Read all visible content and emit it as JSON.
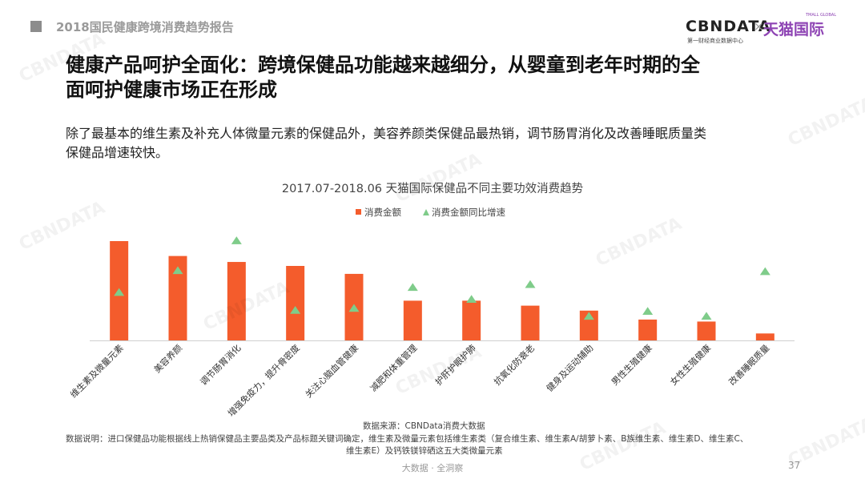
{
  "header": {
    "report_title": "2018国民健康跨境消费趋势报告",
    "logo_cbn": "CBNDATA",
    "logo_cbn_sub": "第一财经商业数据中心",
    "logo_times": "×",
    "logo_tmall": "天猫国际",
    "logo_tmall_en": "TMALL GLOBAL"
  },
  "headline_line1": "健康产品呵护全面化：跨境保健品功能越来越细分，从婴童到老年时期的全",
  "headline_line2": "面呵护健康市场正在形成",
  "subtext_line1": "除了最基本的维生素及补充人体微量元素的保健品外，美容养颜类保健品最热销，调节肠胃消化及改善睡眠质量类",
  "subtext_line2": "保健品增速较快。",
  "chart_data": {
    "type": "bar",
    "title": "2017.07-2018.06 天猫国际保健品不同主要功效消费趋势",
    "categories": [
      "维生素及微量元素",
      "美容养颜",
      "调节肠胃消化",
      "增强免疫力，提升骨密度",
      "关注心脑血管健康",
      "减肥和体重管理",
      "护肝护眼护肺",
      "抗氧化防衰老",
      "健身及运动辅助",
      "男性生殖健康",
      "女性生殖健康",
      "改善睡眠质量"
    ],
    "series": [
      {
        "name": "消费金额",
        "type": "bar",
        "values": [
          100,
          85,
          79,
          75,
          67,
          40,
          40,
          35,
          30,
          21,
          19,
          7
        ]
      },
      {
        "name": "消费金额同比增速",
        "type": "marker",
        "values": [
          48,
          70,
          100,
          30,
          32,
          53,
          41,
          56,
          24,
          29,
          24,
          69
        ]
      }
    ],
    "ylim": [
      0,
      100
    ],
    "grid": false,
    "legend_position": "top-center",
    "colors": {
      "bar": "#f45c2c",
      "marker": "#7fcc8a"
    }
  },
  "source_text": "数据来源：CBNData消费大数据",
  "note_line1": "数据说明：进口保健品功能根据线上热销保健品主要品类及产品标题关键词确定，维生素及微量元素包括维生素类（复合维生素、维生素A/胡萝卜素、B族维生素、维生素D、维生素C、",
  "note_line2": "维生素E）及钙铁镁锌硒这五大类微量元素",
  "footer": {
    "tagline": "大数据 · 全洞察",
    "page_number": "37"
  },
  "watermark_text": "CBNDATA"
}
